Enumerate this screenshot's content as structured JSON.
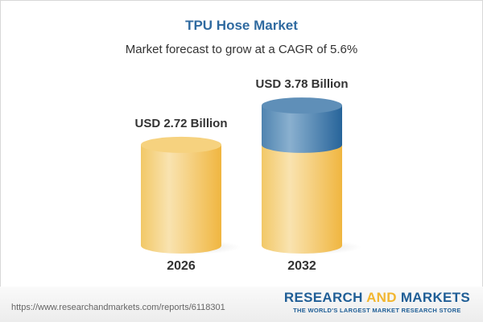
{
  "title": "TPU Hose Market",
  "subtitle": "Market forecast to grow at a CAGR of 5.6%",
  "footer": {
    "url": "https://www.researchandmarkets.com/reports/6118301",
    "logo_part1": "RESEARCH ",
    "logo_part2": "AND",
    "logo_part3": " MARKETS",
    "logo_tagline": "THE WORLD'S LARGEST MARKET RESEARCH STORE"
  },
  "colors": {
    "base": "#f2c157",
    "base_light": "#f9e1aa",
    "growth": "#3d76a6",
    "growth_light": "#8ab0cf",
    "title": "#2f6aa0"
  },
  "chart_data": {
    "type": "bar",
    "style": "3d-cylinder",
    "title": "TPU Hose Market",
    "categories": [
      "2026",
      "2032"
    ],
    "values": [
      2.72,
      3.78
    ],
    "unit": "USD Billion",
    "data_labels": [
      "USD 2.72 Billion",
      "USD 3.78 Billion"
    ],
    "grid": false
  }
}
